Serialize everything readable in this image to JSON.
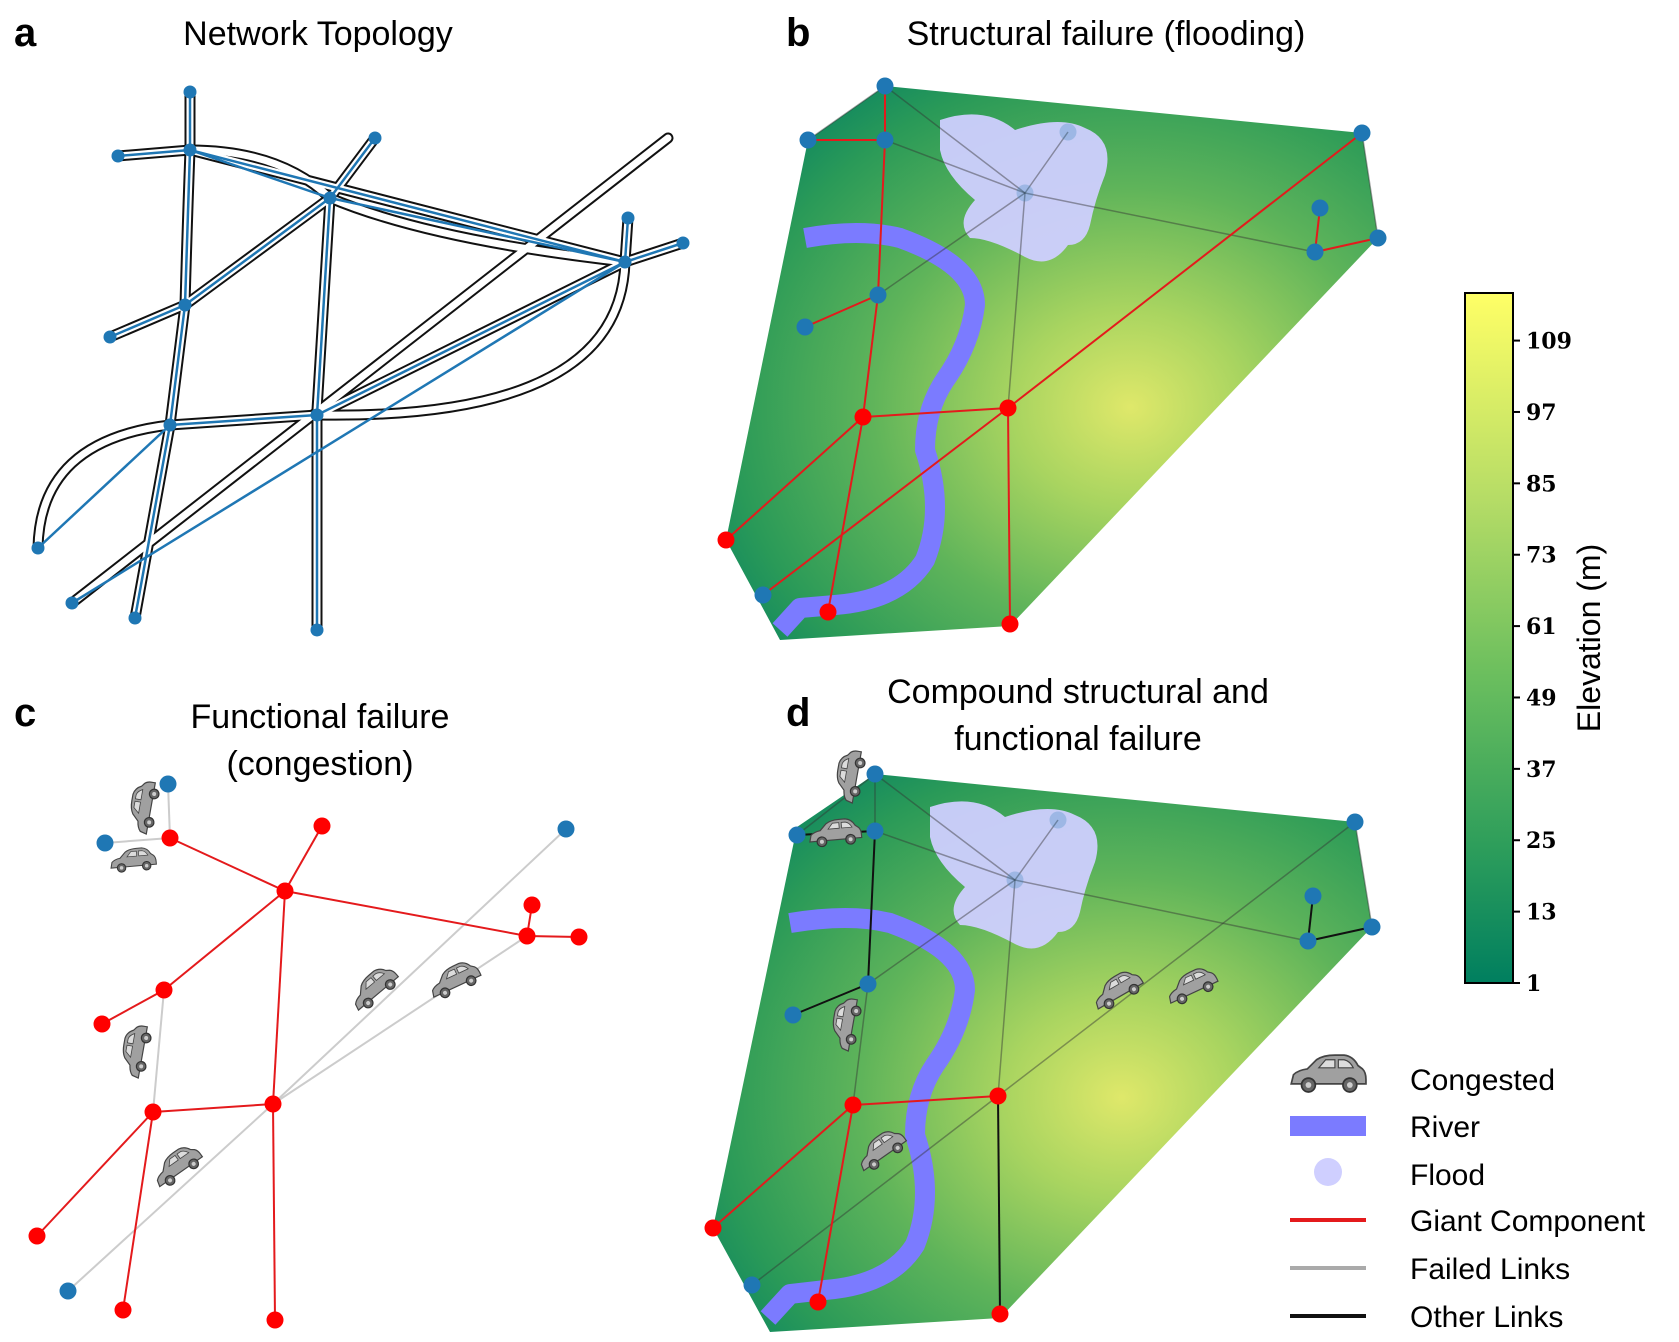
{
  "colors": {
    "node_blue": "#1f77b4",
    "node_red": "#ff0000",
    "link_red": "#e41a1c",
    "link_gray": "#cccccc",
    "link_black": "#111111",
    "river": "#7b7bff",
    "flood": "#c9c9f9",
    "elev_low": "#008060",
    "elev_high": "#ffff66",
    "car": "#9a9a9a"
  },
  "panels": {
    "a": {
      "letter": "a",
      "title": "Network Topology"
    },
    "b": {
      "letter": "b",
      "title": "Structural failure (flooding)"
    },
    "c": {
      "letter": "c",
      "title_line1": "Functional failure",
      "title_line2": "(congestion)"
    },
    "d": {
      "letter": "d",
      "title_line1": "Compound structural and",
      "title_line2": "functional failure"
    }
  },
  "colorbar": {
    "label": "Elevation (m)",
    "min": 1,
    "max": 117,
    "ticks": [
      "1",
      "13",
      "25",
      "37",
      "49",
      "61",
      "73",
      "85",
      "97",
      "109"
    ]
  },
  "legend": {
    "items": [
      {
        "label": "Congested",
        "symbol": "car-icon"
      },
      {
        "label": "River",
        "symbol": "river"
      },
      {
        "label": "Flood",
        "symbol": "flood"
      },
      {
        "label": "Giant Component",
        "symbol": "line-red"
      },
      {
        "label": "Failed Links",
        "symbol": "line-gray"
      },
      {
        "label": "Other Links",
        "symbol": "line-black"
      }
    ]
  }
}
